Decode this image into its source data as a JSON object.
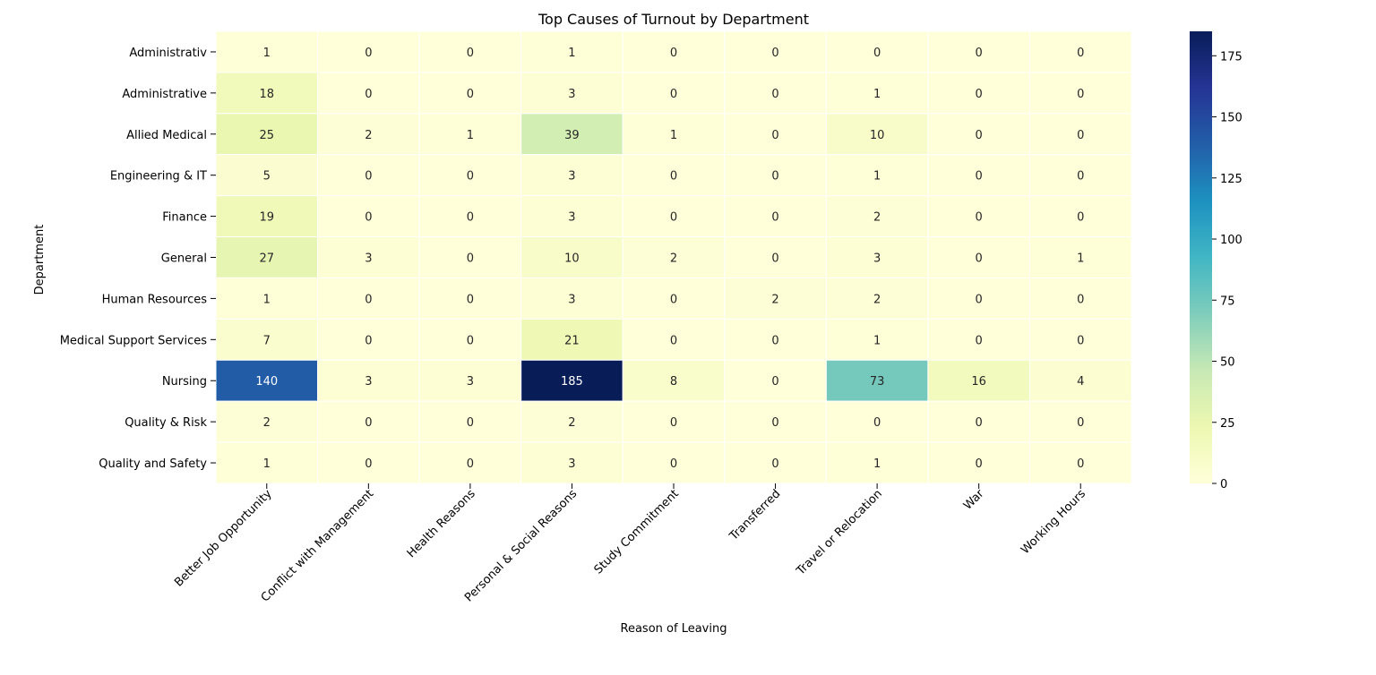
{
  "chart_data": {
    "type": "heatmap",
    "title": "Top Causes of Turnout by Department",
    "xlabel": "Reason of Leaving",
    "ylabel": "Department",
    "x_categories": [
      "Better Job Opportunity",
      "Conflict with Management",
      "Health Reasons",
      "Personal & Social Reasons",
      "Study Commitment",
      "Transferred",
      "Travel or Relocation",
      "War",
      "Working Hours"
    ],
    "y_categories": [
      "Administrativ",
      "Administrative",
      "Allied Medical",
      "Engineering & IT",
      "Finance",
      "General",
      "Human Resources",
      "Medical Support Services",
      "Nursing",
      "Quality & Risk",
      "Quality and Safety"
    ],
    "values": [
      [
        1,
        0,
        0,
        1,
        0,
        0,
        0,
        0,
        0
      ],
      [
        18,
        0,
        0,
        3,
        0,
        0,
        1,
        0,
        0
      ],
      [
        25,
        2,
        1,
        39,
        1,
        0,
        10,
        0,
        0
      ],
      [
        5,
        0,
        0,
        3,
        0,
        0,
        1,
        0,
        0
      ],
      [
        19,
        0,
        0,
        3,
        0,
        0,
        2,
        0,
        0
      ],
      [
        27,
        3,
        0,
        10,
        2,
        0,
        3,
        0,
        1
      ],
      [
        1,
        0,
        0,
        3,
        0,
        2,
        2,
        0,
        0
      ],
      [
        7,
        0,
        0,
        21,
        0,
        0,
        1,
        0,
        0
      ],
      [
        140,
        3,
        3,
        185,
        8,
        0,
        73,
        16,
        4
      ],
      [
        2,
        0,
        0,
        2,
        0,
        0,
        0,
        0,
        0
      ],
      [
        1,
        0,
        0,
        3,
        0,
        0,
        1,
        0,
        0
      ]
    ],
    "colormap": "YlGnBu",
    "colorbar": {
      "range": [
        0,
        185
      ],
      "ticks": [
        0,
        25,
        50,
        75,
        100,
        125,
        150,
        175
      ]
    }
  }
}
